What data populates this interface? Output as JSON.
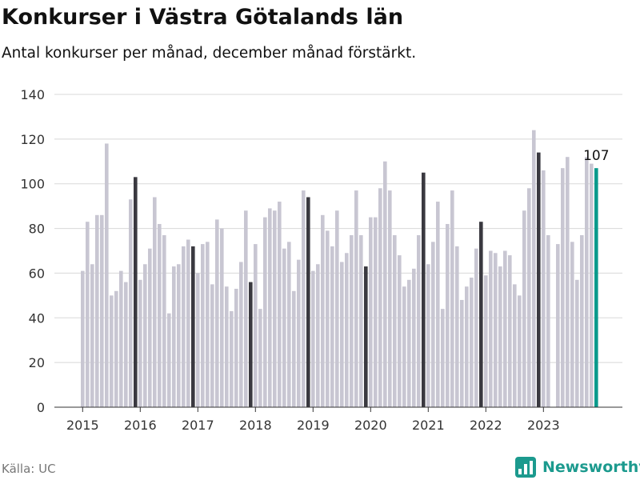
{
  "header": {
    "title": "Konkurser i Västra Götalands län",
    "subtitle": "Antal konkurser per månad, december månad förstärkt."
  },
  "footer": {
    "source": "Källa: UC",
    "brand": "Newsworthy"
  },
  "colors": {
    "bar": "#c8c6d2",
    "december": "#3a3940",
    "latest": "#0a9a8c",
    "grid": "#d8d8d8",
    "axis": "#333333",
    "brand": "#1c9a8e"
  },
  "chart_data": {
    "type": "bar",
    "title": "Konkurser i Västra Götalands län",
    "subtitle": "Antal konkurser per månad, december månad förstärkt.",
    "xlabel": "",
    "ylabel": "",
    "ylim": [
      0,
      140
    ],
    "yticks": [
      0,
      20,
      40,
      60,
      80,
      100,
      120,
      140
    ],
    "xticks": [
      "2015",
      "2016",
      "2017",
      "2018",
      "2019",
      "2020",
      "2021",
      "2022",
      "2023"
    ],
    "grid": true,
    "start_month": "2015-01",
    "categories": [
      "2015-01",
      "2015-02",
      "2015-03",
      "2015-04",
      "2015-05",
      "2015-06",
      "2015-07",
      "2015-08",
      "2015-09",
      "2015-10",
      "2015-11",
      "2015-12",
      "2016-01",
      "2016-02",
      "2016-03",
      "2016-04",
      "2016-05",
      "2016-06",
      "2016-07",
      "2016-08",
      "2016-09",
      "2016-10",
      "2016-11",
      "2016-12",
      "2017-01",
      "2017-02",
      "2017-03",
      "2017-04",
      "2017-05",
      "2017-06",
      "2017-07",
      "2017-08",
      "2017-09",
      "2017-10",
      "2017-11",
      "2017-12",
      "2018-01",
      "2018-02",
      "2018-03",
      "2018-04",
      "2018-05",
      "2018-06",
      "2018-07",
      "2018-08",
      "2018-09",
      "2018-10",
      "2018-11",
      "2018-12",
      "2019-01",
      "2019-02",
      "2019-03",
      "2019-04",
      "2019-05",
      "2019-06",
      "2019-07",
      "2019-08",
      "2019-09",
      "2019-10",
      "2019-11",
      "2019-12",
      "2020-01",
      "2020-02",
      "2020-03",
      "2020-04",
      "2020-05",
      "2020-06",
      "2020-07",
      "2020-08",
      "2020-09",
      "2020-10",
      "2020-11",
      "2020-12",
      "2021-01",
      "2021-02",
      "2021-03",
      "2021-04",
      "2021-05",
      "2021-06",
      "2021-07",
      "2021-08",
      "2021-09",
      "2021-10",
      "2021-11",
      "2021-12",
      "2022-01",
      "2022-02",
      "2022-03",
      "2022-04",
      "2022-05",
      "2022-06",
      "2022-07",
      "2022-08",
      "2022-09",
      "2022-10",
      "2022-11",
      "2022-12",
      "2023-01",
      "2023-02",
      "2023-03",
      "2023-04",
      "2023-05",
      "2023-06",
      "2023-07",
      "2023-08",
      "2023-09",
      "2023-10",
      "2023-11",
      "2023-12"
    ],
    "values": [
      61,
      83,
      64,
      86,
      86,
      118,
      50,
      52,
      61,
      56,
      93,
      103,
      57,
      64,
      71,
      94,
      82,
      77,
      42,
      63,
      64,
      72,
      75,
      72,
      60,
      73,
      74,
      55,
      84,
      80,
      54,
      43,
      53,
      65,
      88,
      56,
      73,
      44,
      85,
      89,
      88,
      92,
      71,
      74,
      52,
      66,
      97,
      94,
      61,
      64,
      86,
      79,
      72,
      88,
      65,
      69,
      77,
      97,
      77,
      63,
      85,
      85,
      98,
      110,
      97,
      77,
      68,
      54,
      57,
      62,
      77,
      105,
      64,
      74,
      92,
      44,
      82,
      97,
      72,
      48,
      54,
      58,
      71,
      83,
      59,
      70,
      69,
      63,
      70,
      68,
      55,
      50,
      88,
      98,
      124,
      114,
      106,
      77,
      0,
      73,
      107,
      112,
      74,
      57,
      77,
      112,
      109,
      107
    ],
    "highlight_month": 12,
    "latest_label": "107"
  }
}
